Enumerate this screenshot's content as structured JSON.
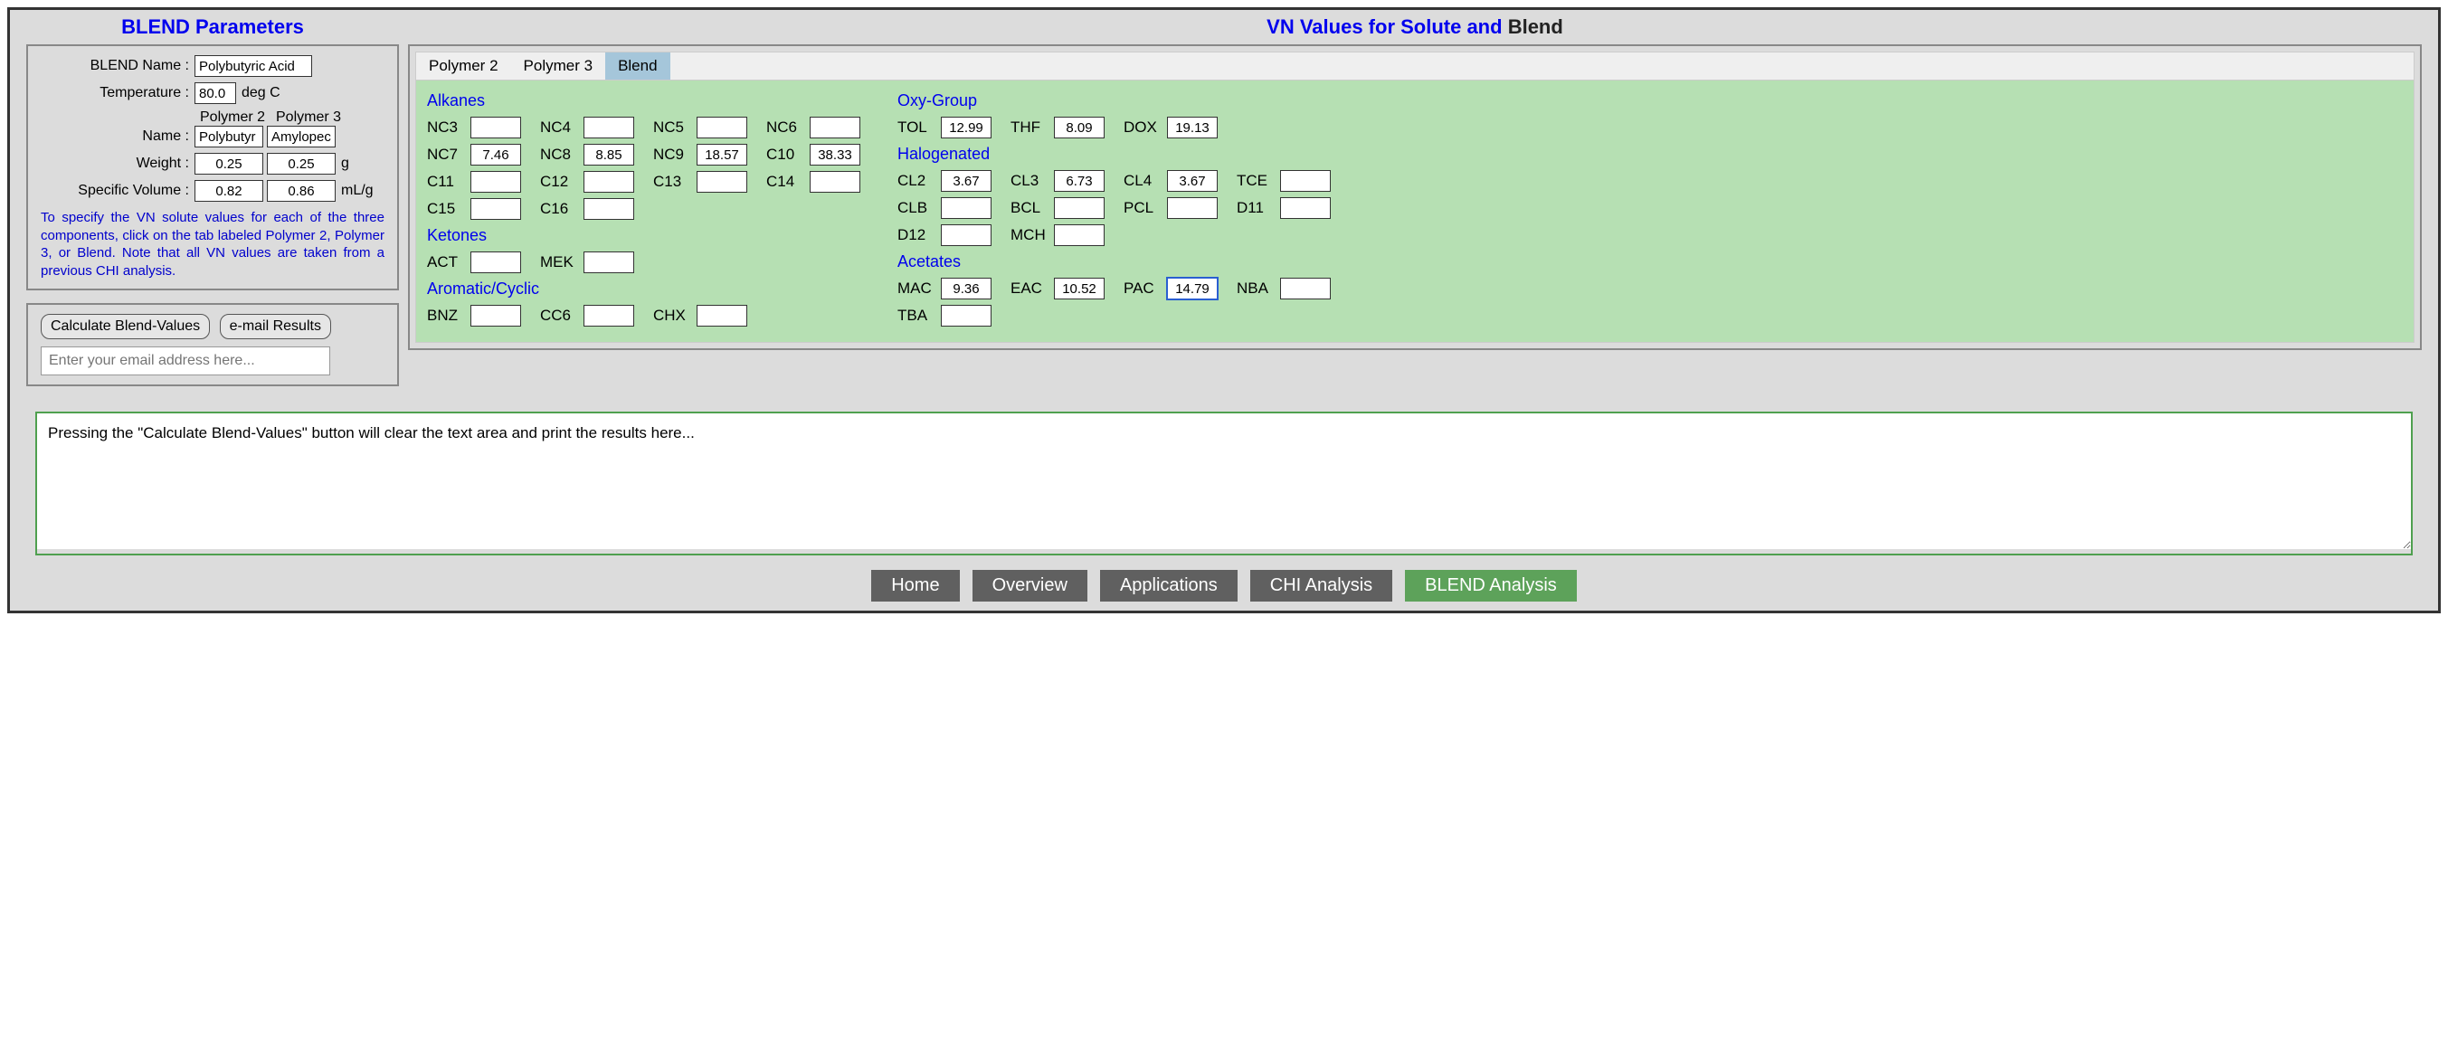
{
  "left": {
    "title": "BLEND Parameters",
    "blend_name_label": "BLEND Name :",
    "blend_name_value": "Polybutyric Acid",
    "temperature_label": "Temperature :",
    "temperature_value": "80.0",
    "temperature_unit": "deg C",
    "poly2_head": "Polymer 2",
    "poly3_head": "Polymer 3",
    "name_label": "Name :",
    "poly2_name": "Polybutyr",
    "poly3_name": "Amylopec",
    "weight_label": "Weight :",
    "poly2_weight": "0.25",
    "poly3_weight": "0.25",
    "weight_unit": "g",
    "sv_label": "Specific Volume :",
    "poly2_sv": "0.82",
    "poly3_sv": "0.86",
    "sv_unit": "mL/g",
    "hint": "To specify the VN solute values for each of the three components, click on the tab labeled Polymer 2, Polymer 3, or Blend. Note that all VN values are taken from a previous CHI analysis.",
    "calc_btn": "Calculate Blend-Values",
    "email_btn": "e-mail Results",
    "email_placeholder": "Enter your email address here..."
  },
  "right": {
    "title_blue": "VN Values for Solute and ",
    "title_black": "Blend",
    "tabs": {
      "p2": "Polymer 2",
      "p3": "Polymer 3",
      "blend": "Blend"
    },
    "active_tab": "blend",
    "groups_left": [
      {
        "title": "Alkanes",
        "pairs": [
          {
            "l": "NC3",
            "v": ""
          },
          {
            "l": "NC4",
            "v": ""
          },
          {
            "l": "NC5",
            "v": ""
          },
          {
            "l": "NC6",
            "v": ""
          },
          {
            "l": "NC7",
            "v": "7.46"
          },
          {
            "l": "NC8",
            "v": "8.85"
          },
          {
            "l": "NC9",
            "v": "18.57"
          },
          {
            "l": "C10",
            "v": "38.33"
          },
          {
            "l": "C11",
            "v": ""
          },
          {
            "l": "C12",
            "v": ""
          },
          {
            "l": "C13",
            "v": ""
          },
          {
            "l": "C14",
            "v": ""
          },
          {
            "l": "C15",
            "v": ""
          },
          {
            "l": "C16",
            "v": ""
          }
        ]
      },
      {
        "title": "Ketones",
        "pairs": [
          {
            "l": "ACT",
            "v": ""
          },
          {
            "l": "MEK",
            "v": ""
          }
        ]
      },
      {
        "title": "Aromatic/Cyclic",
        "pairs": [
          {
            "l": "BNZ",
            "v": ""
          },
          {
            "l": "CC6",
            "v": ""
          },
          {
            "l": "CHX",
            "v": ""
          }
        ]
      }
    ],
    "groups_right": [
      {
        "title": "Oxy-Group",
        "pairs": [
          {
            "l": "TOL",
            "v": "12.99"
          },
          {
            "l": "THF",
            "v": "8.09"
          },
          {
            "l": "DOX",
            "v": "19.13"
          }
        ]
      },
      {
        "title": "Halogenated",
        "pairs": [
          {
            "l": "CL2",
            "v": "3.67"
          },
          {
            "l": "CL3",
            "v": "6.73"
          },
          {
            "l": "CL4",
            "v": "3.67"
          },
          {
            "l": "TCE",
            "v": ""
          },
          {
            "l": "CLB",
            "v": ""
          },
          {
            "l": "BCL",
            "v": ""
          },
          {
            "l": "PCL",
            "v": ""
          },
          {
            "l": "D11",
            "v": ""
          },
          {
            "l": "D12",
            "v": ""
          },
          {
            "l": "MCH",
            "v": ""
          }
        ]
      },
      {
        "title": "Acetates",
        "pairs": [
          {
            "l": "MAC",
            "v": "9.36"
          },
          {
            "l": "EAC",
            "v": "10.52"
          },
          {
            "l": "PAC",
            "v": "14.79",
            "focused": true
          },
          {
            "l": "NBA",
            "v": ""
          },
          {
            "l": "TBA",
            "v": ""
          }
        ]
      }
    ]
  },
  "results_placeholder": "Pressing the \"Calculate Blend-Values\" button will clear the text area and print the results here...",
  "nav": {
    "home": "Home",
    "overview": "Overview",
    "applications": "Applications",
    "chi": "CHI Analysis",
    "blend": "BLEND Analysis"
  },
  "colors": {
    "frame_bg": "#dcdcdc",
    "accent_blue": "#0000ee",
    "tab_active": "#a5c6da",
    "vn_body_bg": "#b6e0b3",
    "results_border": "#4fa04f",
    "nav_bg": "#606060",
    "nav_active": "#5da25a"
  }
}
